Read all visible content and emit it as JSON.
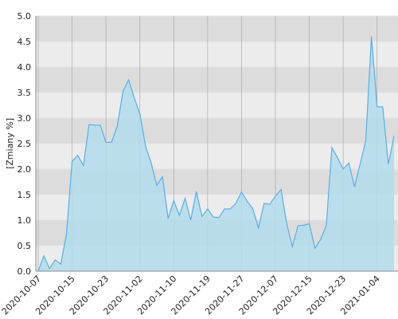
{
  "chart_data": {
    "type": "area",
    "y_label": "[Zmiany %]",
    "categories": [
      "2020-10-07",
      null,
      null,
      null,
      null,
      null,
      "2020-10-15",
      null,
      null,
      null,
      null,
      null,
      "2020-10-23",
      null,
      null,
      null,
      null,
      null,
      "2020-11-02",
      null,
      null,
      null,
      null,
      null,
      "2020-11-10",
      null,
      null,
      null,
      null,
      null,
      "2020-11-19",
      null,
      null,
      null,
      null,
      null,
      "2020-11-27",
      null,
      null,
      null,
      null,
      null,
      "2020-12-07",
      null,
      null,
      null,
      null,
      null,
      "2020-12-15",
      null,
      null,
      null,
      null,
      null,
      "2020-12-23",
      null,
      null,
      null,
      null,
      null,
      "2021-01-04",
      null,
      null,
      null
    ],
    "values": [
      0.0,
      0.3,
      0.05,
      0.22,
      0.14,
      0.72,
      2.15,
      2.27,
      2.07,
      2.87,
      2.86,
      2.86,
      2.52,
      2.53,
      2.84,
      3.52,
      3.75,
      3.4,
      3.08,
      2.45,
      2.12,
      1.68,
      1.85,
      1.03,
      1.38,
      1.09,
      1.43,
      1.0,
      1.56,
      1.07,
      1.22,
      1.06,
      1.05,
      1.22,
      1.22,
      1.33,
      1.55,
      1.37,
      1.22,
      0.85,
      1.33,
      1.31,
      1.47,
      1.6,
      0.93,
      0.48,
      0.89,
      0.9,
      0.93,
      0.45,
      0.62,
      0.89,
      2.42,
      2.22,
      2.0,
      2.12,
      1.65,
      2.1,
      2.56,
      4.6,
      3.22,
      3.22,
      2.1,
      2.65
    ],
    "color": "#5aaee8",
    "fill": "#b3dcec",
    "ylim": [
      0,
      5
    ],
    "yticks": [
      {
        "value": 0,
        "label": "0.0"
      },
      {
        "value": 0.5,
        "label": "0.5"
      },
      {
        "value": 1,
        "label": "1.0"
      },
      {
        "value": 1.5,
        "label": "1.5"
      },
      {
        "value": 2,
        "label": "2.0"
      },
      {
        "value": 2.5,
        "label": "2.5"
      },
      {
        "value": 3,
        "label": "3.0"
      },
      {
        "value": 3.5,
        "label": "3.5"
      },
      {
        "value": 4,
        "label": "4.0"
      },
      {
        "value": 4.5,
        "label": "4.5"
      },
      {
        "value": 5,
        "label": "5.0"
      }
    ],
    "grid": true
  }
}
